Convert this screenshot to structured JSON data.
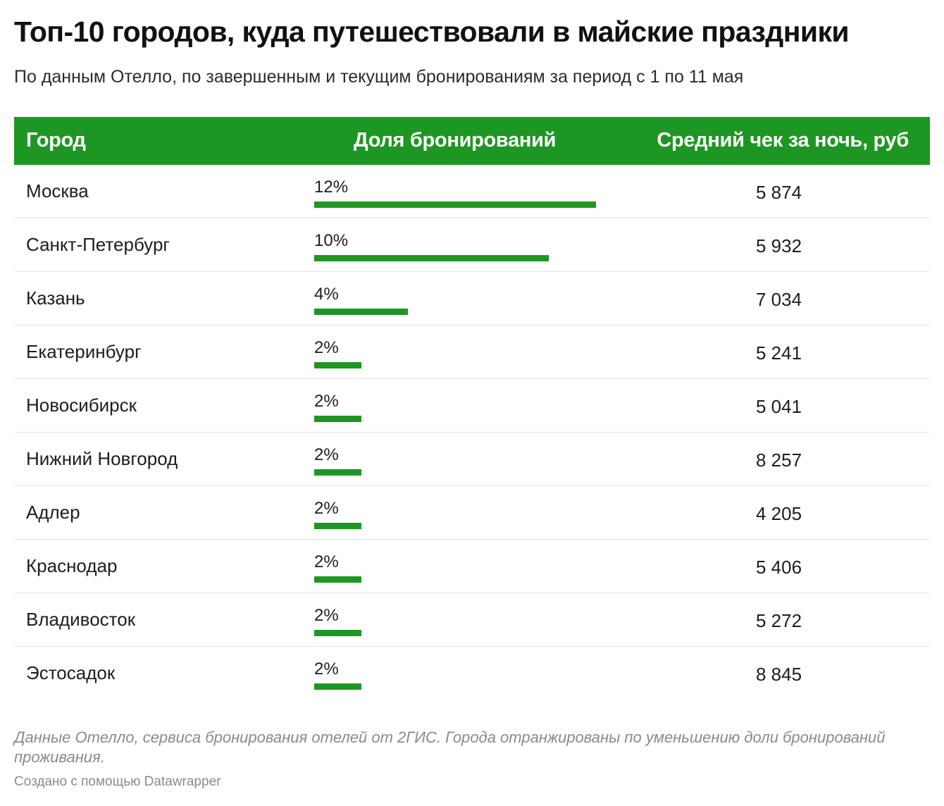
{
  "title": "Топ-10 городов, куда путешествовали в майские праздники",
  "subtitle": "По данным Отелло, по завершенным и текущим бронированиям за период с 1 по 11 мая",
  "colors": {
    "header_bg": "#1e9623",
    "bar": "#1e9623"
  },
  "chart_data": {
    "type": "table",
    "columns": [
      "Город",
      "Доля бронирований",
      "Средний чек за ночь, руб"
    ],
    "rows": [
      {
        "city": "Москва",
        "share": 12,
        "share_label": "12%",
        "check": "5 874"
      },
      {
        "city": "Санкт-Петербург",
        "share": 10,
        "share_label": "10%",
        "check": "5 932"
      },
      {
        "city": "Казань",
        "share": 4,
        "share_label": "4%",
        "check": "7 034"
      },
      {
        "city": "Екатеринбург",
        "share": 2,
        "share_label": "2%",
        "check": "5 241"
      },
      {
        "city": "Новосибирск",
        "share": 2,
        "share_label": "2%",
        "check": "5 041"
      },
      {
        "city": "Нижний Новгород",
        "share": 2,
        "share_label": "2%",
        "check": "8 257"
      },
      {
        "city": "Адлер",
        "share": 2,
        "share_label": "2%",
        "check": "4 205"
      },
      {
        "city": "Краснодар",
        "share": 2,
        "share_label": "2%",
        "check": "5 406"
      },
      {
        "city": "Владивосток",
        "share": 2,
        "share_label": "2%",
        "check": "5 272"
      },
      {
        "city": "Эстосадок",
        "share": 2,
        "share_label": "2%",
        "check": "8 845"
      }
    ]
  },
  "footer": {
    "note": "Данные Отелло, сервиса бронирования отелей от 2ГИС. Города отранжированы по уменьшению доли бронирований проживания.",
    "credit": "Создано с помощью Datawrapper"
  }
}
